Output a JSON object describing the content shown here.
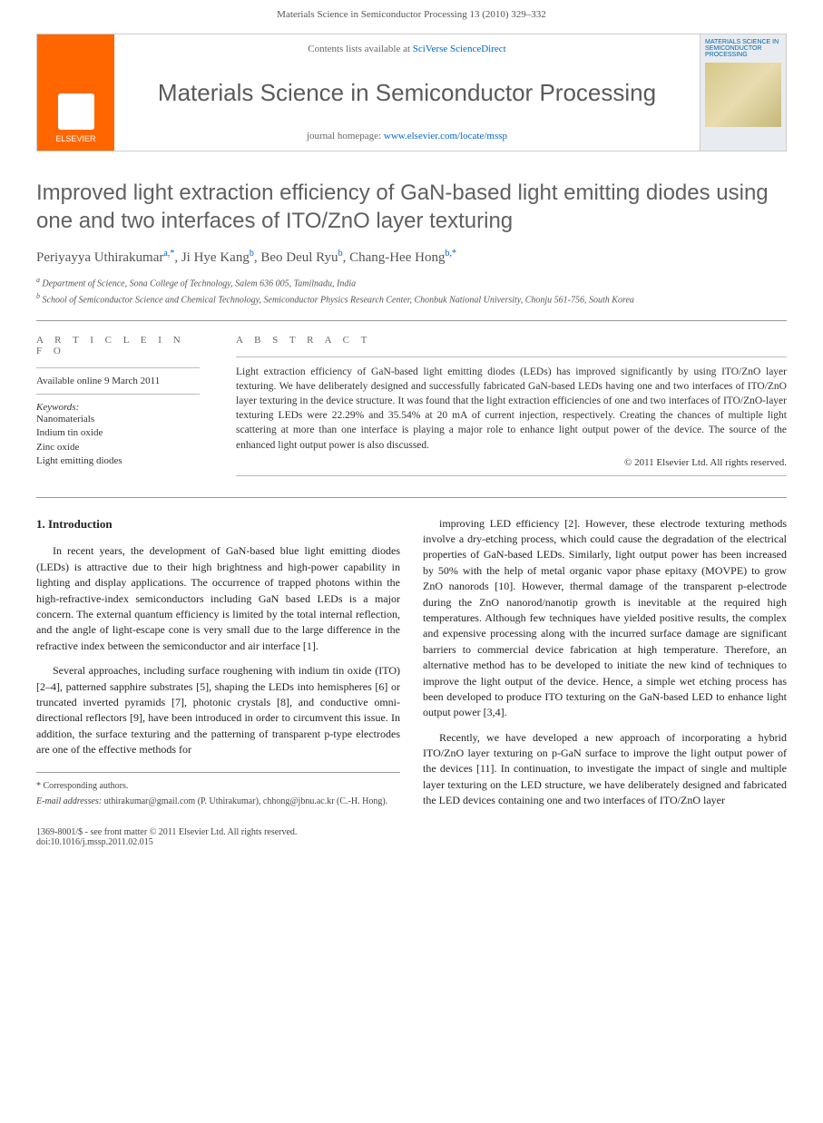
{
  "header": {
    "citation": "Materials Science in Semiconductor Processing 13 (2010) 329–332"
  },
  "banner": {
    "contents_prefix": "Contents lists available at ",
    "contents_link": "SciVerse ScienceDirect",
    "journal_title": "Materials Science in Semiconductor Processing",
    "homepage_prefix": "journal homepage: ",
    "homepage_url": "www.elsevier.com/locate/mssp",
    "publisher": "ELSEVIER",
    "cover_text": "MATERIALS SCIENCE IN SEMICONDUCTOR PROCESSING"
  },
  "article": {
    "title": "Improved light extraction efficiency of GaN-based light emitting diodes using one and two interfaces of ITO/ZnO layer texturing",
    "authors_html": "Periyayya Uthirakumar",
    "author_1": "Periyayya Uthirakumar",
    "author_1_aff": "a,*",
    "author_2": "Ji Hye Kang",
    "author_2_aff": "b",
    "author_3": "Beo Deul Ryu",
    "author_3_aff": "b",
    "author_4": "Chang-Hee Hong",
    "author_4_aff": "b,*",
    "affiliations": {
      "a": "Department of Science, Sona College of Technology, Salem 636 005, Tamilnadu, India",
      "b": "School of Semiconductor Science and Chemical Technology, Semiconductor Physics Research Center, Chonbuk National University, Chonju 561-756, South Korea"
    }
  },
  "meta": {
    "info_label": "A R T I C L E  I N F O",
    "abstract_label": "A B S T R A C T",
    "online_date": "Available online 9 March 2011",
    "keywords_label": "Keywords:",
    "keywords": [
      "Nanomaterials",
      "Indium tin oxide",
      "Zinc oxide",
      "Light emitting diodes"
    ]
  },
  "abstract": {
    "text": "Light extraction efficiency of GaN-based light emitting diodes (LEDs) has improved significantly by using ITO/ZnO layer texturing. We have deliberately designed and successfully fabricated GaN-based LEDs having one and two interfaces of ITO/ZnO layer texturing in the device structure. It was found that the light extraction efficiencies of one and two interfaces of ITO/ZnO-layer texturing LEDs were 22.29% and 35.54% at 20 mA of current injection, respectively. Creating the chances of multiple light scattering at more than one interface is playing a major role to enhance light output power of the device. The source of the enhanced light output power is also discussed.",
    "copyright": "© 2011 Elsevier Ltd. All rights reserved."
  },
  "body": {
    "section_1_heading": "1. Introduction",
    "para_1": "In recent years, the development of GaN-based blue light emitting diodes (LEDs) is attractive due to their high brightness and high-power capability in lighting and display applications. The occurrence of trapped photons within the high-refractive-index semiconductors including GaN based LEDs is a major concern. The external quantum efficiency is limited by the total internal reflection, and the angle of light-escape cone is very small due to the large difference in the refractive index between the semiconductor and air interface [1].",
    "para_2": "Several approaches, including surface roughening with indium tin oxide (ITO) [2–4], patterned sapphire substrates [5], shaping the LEDs into hemispheres [6] or truncated inverted pyramids [7], photonic crystals [8], and conductive omni-directional reflectors [9], have been introduced in order to circumvent this issue. In addition, the surface texturing and the patterning of transparent p-type electrodes are one of the effective methods for",
    "para_3": "improving LED efficiency [2]. However, these electrode texturing methods involve a dry-etching process, which could cause the degradation of the electrical properties of GaN-based LEDs. Similarly, light output power has been increased by 50% with the help of metal organic vapor phase epitaxy (MOVPE) to grow ZnO nanorods [10]. However, thermal damage of the transparent p-electrode during the ZnO nanorod/nanotip growth is inevitable at the required high temperatures. Although few techniques have yielded positive results, the complex and expensive processing along with the incurred surface damage are significant barriers to commercial device fabrication at high temperature. Therefore, an alternative method has to be developed to initiate the new kind of techniques to improve the light output of the device. Hence, a simple wet etching process has been developed to produce ITO texturing on the GaN-based LED to enhance light output power [3,4].",
    "para_4": "Recently, we have developed a new approach of incorporating a hybrid ITO/ZnO layer texturing on p-GaN surface to improve the light output power of the devices [11]. In continuation, to investigate the impact of single and multiple layer texturing on the LED structure, we have deliberately designed and fabricated the LED devices containing one and two interfaces of ITO/ZnO layer"
  },
  "footer": {
    "corr_label": "* Corresponding authors.",
    "emails_label": "E-mail addresses:",
    "email_1": "uthirakumar@gmail.com (P. Uthirakumar),",
    "email_2": "chhong@jbnu.ac.kr (C.-H. Hong).",
    "issn": "1369-8001/$ - see front matter © 2011 Elsevier Ltd. All rights reserved.",
    "doi": "doi:10.1016/j.mssp.2011.02.015"
  },
  "colors": {
    "elsevier_orange": "#ff6600",
    "link_blue": "#0066cc",
    "text_gray": "#555555",
    "heading_gray": "#606060"
  }
}
